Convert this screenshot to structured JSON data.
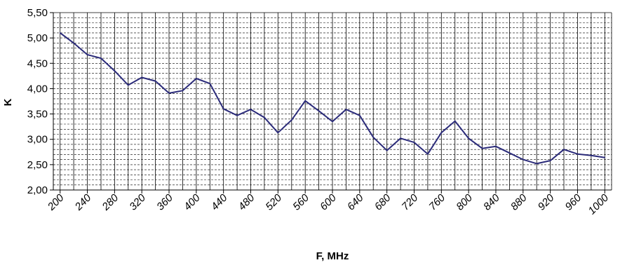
{
  "chart_data": {
    "type": "line",
    "xlabel": "F, MHz",
    "ylabel": "K",
    "ylim": [
      2.0,
      5.5
    ],
    "y_ticks": [
      "2,00",
      "2,50",
      "3,00",
      "3,50",
      "4,00",
      "4,50",
      "5,00",
      "5,50"
    ],
    "x_ticks": [
      "200",
      "240",
      "280",
      "320",
      "360",
      "400",
      "440",
      "480",
      "520",
      "560",
      "600",
      "640",
      "680",
      "720",
      "760",
      "800",
      "840",
      "880",
      "920",
      "960",
      "1000"
    ],
    "x": [
      200,
      220,
      240,
      260,
      280,
      300,
      320,
      340,
      360,
      380,
      400,
      420,
      440,
      460,
      480,
      500,
      520,
      540,
      560,
      580,
      600,
      620,
      640,
      660,
      680,
      700,
      720,
      740,
      760,
      780,
      800,
      820,
      840,
      860,
      880,
      900,
      920,
      940,
      960,
      980,
      1000
    ],
    "series": [
      {
        "color": "#2b2b7a",
        "values": [
          5.1,
          4.9,
          4.67,
          4.6,
          4.35,
          4.07,
          4.22,
          4.15,
          3.91,
          3.96,
          4.2,
          4.1,
          3.6,
          3.47,
          3.59,
          3.43,
          3.13,
          3.38,
          3.76,
          3.56,
          3.35,
          3.59,
          3.47,
          3.04,
          2.78,
          3.02,
          2.94,
          2.71,
          3.13,
          3.36,
          3.02,
          2.82,
          2.86,
          2.73,
          2.6,
          2.52,
          2.58,
          2.8,
          2.71,
          2.68,
          2.64
        ]
      }
    ],
    "grid": true
  }
}
